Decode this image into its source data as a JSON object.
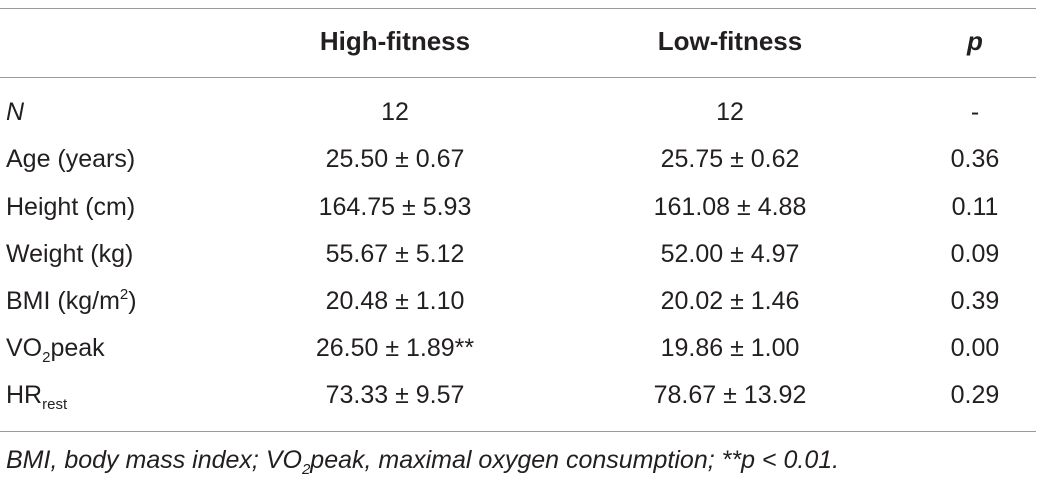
{
  "table": {
    "headers": {
      "high": "High-fitness",
      "low": "Low-fitness",
      "p": "p"
    },
    "rows": [
      {
        "label": "N",
        "high": "12",
        "low": "12",
        "p": "-"
      },
      {
        "label": "Age (years)",
        "high": "25.50 ± 0.67",
        "low": "25.75 ± 0.62",
        "p": "0.36"
      },
      {
        "label": "Height (cm)",
        "high": "164.75 ± 5.93",
        "low": "161.08 ± 4.88",
        "p": "0.11"
      },
      {
        "label": "Weight (kg)",
        "high": "55.67 ± 5.12",
        "low": "52.00 ± 4.97",
        "p": "0.09"
      },
      {
        "label_pre": "BMI (kg/m",
        "label_sup": "2",
        "label_post": ")",
        "high": "20.48 ± 1.10",
        "low": "20.02 ± 1.46",
        "p": "0.39"
      },
      {
        "label_pre": "VO",
        "label_sub": "2",
        "label_post": "peak",
        "high": "26.50 ± 1.89**",
        "low": "19.86 ± 1.00",
        "p": "0.00"
      },
      {
        "label_pre": "HR",
        "label_sub": "rest",
        "high": "73.33 ± 9.57",
        "low": "78.67 ± 13.92",
        "p": "0.29"
      }
    ],
    "footnote": {
      "pre": "BMI, body mass index; VO",
      "sub": "2",
      "post": "peak, maximal oxygen consumption; **p < 0.01."
    }
  }
}
